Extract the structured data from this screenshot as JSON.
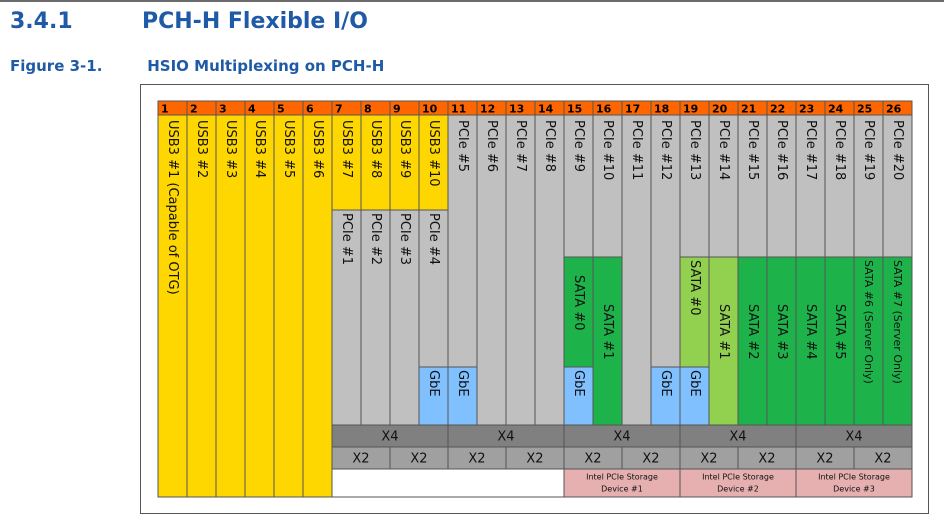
{
  "section": {
    "number": "3.4.1",
    "title": "PCH-H Flexible I/O"
  },
  "figure": {
    "number": "Figure 3-1.",
    "title": "HSIO Multiplexing on PCH-H"
  },
  "colors": {
    "header": "#ff6600",
    "usb": "#ffd700",
    "pcie": "#c0c0c0",
    "sata_dark": "#1db34a",
    "sata_light": "#92d050",
    "gbe": "#80c0ff",
    "lanes_row": "#808080",
    "x2_row": "#a0a0a0",
    "storage": "#e6b0b0",
    "border": "#555555"
  },
  "lane_numbers": [
    "1",
    "2",
    "3",
    "4",
    "5",
    "6",
    "7",
    "8",
    "9",
    "10",
    "11",
    "12",
    "13",
    "14",
    "15",
    "16",
    "17",
    "18",
    "19",
    "20",
    "21",
    "22",
    "23",
    "24",
    "25",
    "26"
  ],
  "usb_labels": [
    "USB3 #1 (Capable of OTG)",
    "USB3 #2",
    "USB3 #3",
    "USB3 #4",
    "USB3 #5",
    "USB3 #6",
    "USB3 #7",
    "USB3 #8",
    "USB3 #9",
    "USB3 #10"
  ],
  "pcie_low_labels": [
    "PCIe #1",
    "PCIe #2",
    "PCIe #3",
    "PCIe #4"
  ],
  "pcie_labels": [
    "PCIe #5",
    "PCIe #6",
    "PCIe #7",
    "PCIe #8",
    "PCIe #9",
    "PCIe #10",
    "PCIe #11",
    "PCIe #12",
    "PCIe #13",
    "PCIe #14",
    "PCIe #15",
    "PCIe #16",
    "PCIe #17",
    "PCIe #18",
    "PCIe #19",
    "PCIe #20"
  ],
  "gbe_label": "GbE",
  "sata_labels": [
    "SATA #0",
    "SATA #1",
    "SATA #0",
    "SATA #1",
    "SATA #2",
    "SATA #3",
    "SATA #4",
    "SATA #5",
    "SATA #6 (Server Only)",
    "SATA #7 (Server Only)"
  ],
  "x4_label": "X4",
  "x2_label": "X2",
  "storage_devices": [
    {
      "line1": "Intel PCIe Storage",
      "line2": "Device #1"
    },
    {
      "line1": "Intel PCIe Storage",
      "line2": "Device #2"
    },
    {
      "line1": "Intel PCIe Storage",
      "line2": "Device #3"
    }
  ]
}
